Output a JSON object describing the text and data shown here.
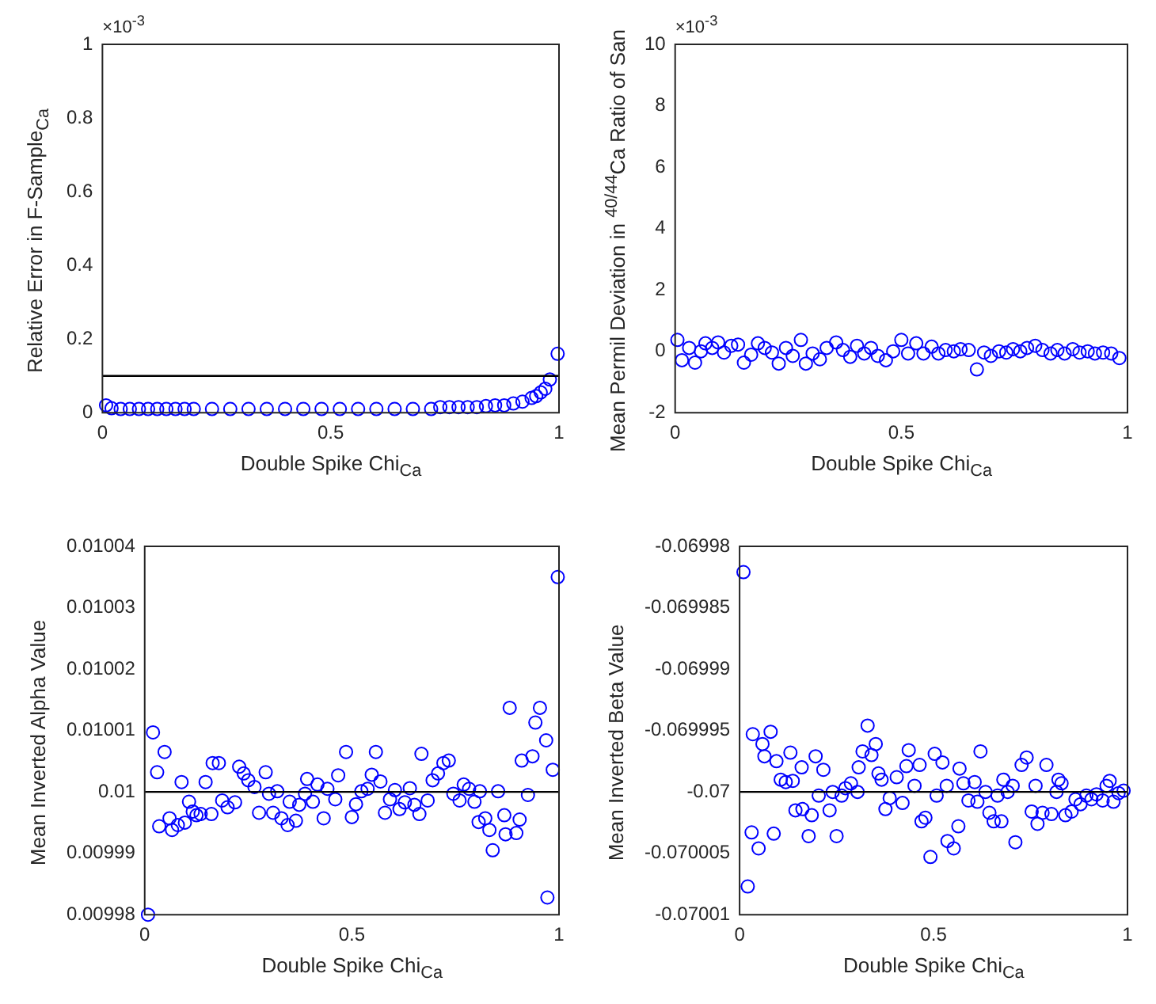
{
  "chart_data": [
    {
      "type": "scatter",
      "xlabel": "Double Spike Chi$_{Ca}$",
      "ylabel": "Relative Error in F-Sample$_{Ca}$",
      "marker": "circle",
      "annotations": [
        "×10$^{-3}$"
      ],
      "xlim": [
        0,
        1
      ],
      "xticks": [
        0,
        0.5,
        1
      ],
      "ylim": [
        0,
        1
      ],
      "yticks": [
        0,
        0.2,
        0.4,
        0.6,
        0.8,
        1
      ],
      "ref_lines": [
        {
          "axis": "y",
          "value": 0.1,
          "color": "#000000"
        }
      ],
      "series": [
        {
          "color": "#0000ff",
          "x": [
            0.008,
            0.02,
            0.04,
            0.06,
            0.08,
            0.1,
            0.12,
            0.14,
            0.16,
            0.18,
            0.2,
            0.24,
            0.28,
            0.32,
            0.36,
            0.4,
            0.44,
            0.48,
            0.52,
            0.56,
            0.6,
            0.64,
            0.68,
            0.72,
            0.74,
            0.76,
            0.78,
            0.8,
            0.82,
            0.84,
            0.86,
            0.88,
            0.9,
            0.92,
            0.94,
            0.95,
            0.96,
            0.97,
            0.98,
            0.997
          ],
          "values": [
            0.02,
            0.012,
            0.01,
            0.01,
            0.01,
            0.01,
            0.01,
            0.01,
            0.01,
            0.01,
            0.01,
            0.01,
            0.01,
            0.01,
            0.01,
            0.01,
            0.01,
            0.01,
            0.01,
            0.01,
            0.01,
            0.01,
            0.01,
            0.01,
            0.015,
            0.015,
            0.015,
            0.015,
            0.015,
            0.018,
            0.02,
            0.02,
            0.025,
            0.03,
            0.04,
            0.045,
            0.055,
            0.065,
            0.09,
            0.16
          ]
        }
      ]
    },
    {
      "type": "scatter",
      "xlabel": "Double Spike Chi$_{Ca}$",
      "ylabel": "Mean Permil Deviation in $^{40/44}$Ca Ratio of San",
      "marker": "circle",
      "annotations": [
        "×10$^{-3}$"
      ],
      "xlim": [
        0,
        1
      ],
      "xticks": [
        0,
        0.5,
        1
      ],
      "ylim": [
        -2,
        10
      ],
      "yticks": [
        -2,
        0,
        2,
        4,
        6,
        8,
        10
      ],
      "series": [
        {
          "color": "#0000ff",
          "x": [
            0.005,
            0.015,
            0.031,
            0.044,
            0.057,
            0.067,
            0.082,
            0.095,
            0.108,
            0.124,
            0.139,
            0.152,
            0.168,
            0.183,
            0.198,
            0.214,
            0.229,
            0.245,
            0.26,
            0.278,
            0.289,
            0.304,
            0.32,
            0.335,
            0.356,
            0.371,
            0.387,
            0.402,
            0.418,
            0.433,
            0.448,
            0.466,
            0.482,
            0.5,
            0.515,
            0.533,
            0.549,
            0.567,
            0.582,
            0.598,
            0.616,
            0.631,
            0.649,
            0.667,
            0.683,
            0.698,
            0.716,
            0.732,
            0.747,
            0.763,
            0.778,
            0.796,
            0.812,
            0.83,
            0.845,
            0.861,
            0.879,
            0.894,
            0.912,
            0.928,
            0.946,
            0.964,
            0.982
          ],
          "values": [
            0.37,
            -0.29,
            0.11,
            -0.37,
            0,
            0.26,
            0.11,
            0.29,
            -0.04,
            0.18,
            0.22,
            -0.37,
            -0.11,
            0.26,
            0.11,
            -0.04,
            -0.4,
            0.11,
            -0.15,
            0.37,
            -0.4,
            -0.07,
            -0.26,
            0.11,
            0.29,
            0.04,
            -0.18,
            0.18,
            -0.07,
            0.11,
            -0.15,
            -0.29,
            0,
            0.37,
            -0.07,
            0.26,
            -0.07,
            0.15,
            -0.07,
            0.04,
            0,
            0.07,
            0.04,
            -0.59,
            -0.04,
            -0.15,
            0,
            -0.04,
            0.07,
            0,
            0.11,
            0.18,
            0.04,
            -0.07,
            0.04,
            -0.07,
            0.07,
            -0.04,
            0,
            -0.07,
            -0.04,
            -0.07,
            -0.22
          ]
        }
      ]
    },
    {
      "type": "scatter",
      "xlabel": "Double Spike Chi$_{Ca}$",
      "ylabel": "Mean Inverted Alpha Value",
      "marker": "circle",
      "xlim": [
        0,
        1
      ],
      "xticks": [
        0,
        0.5,
        1
      ],
      "ylim": [
        0.00998,
        0.01004
      ],
      "yticks": [
        0.00998,
        0.00999,
        0.01,
        0.01001,
        0.01002,
        0.01003,
        0.01004
      ],
      "ref_lines": [
        {
          "axis": "y",
          "value": 0.01,
          "color": "#000000"
        }
      ],
      "series": [
        {
          "color": "#0000ff",
          "x": [
            0.008,
            0.02,
            0.03,
            0.035,
            0.048,
            0.06,
            0.066,
            0.08,
            0.089,
            0.097,
            0.107,
            0.116,
            0.125,
            0.135,
            0.147,
            0.161,
            0.164,
            0.179,
            0.187,
            0.2,
            0.218,
            0.228,
            0.239,
            0.25,
            0.265,
            0.276,
            0.292,
            0.3,
            0.31,
            0.32,
            0.33,
            0.345,
            0.35,
            0.365,
            0.373,
            0.387,
            0.392,
            0.406,
            0.417,
            0.432,
            0.441,
            0.46,
            0.467,
            0.486,
            0.5,
            0.51,
            0.523,
            0.538,
            0.548,
            0.558,
            0.569,
            0.58,
            0.592,
            0.604,
            0.615,
            0.628,
            0.64,
            0.651,
            0.663,
            0.668,
            0.683,
            0.695,
            0.708,
            0.721,
            0.734,
            0.745,
            0.76,
            0.77,
            0.783,
            0.796,
            0.806,
            0.809,
            0.822,
            0.832,
            0.84,
            0.853,
            0.868,
            0.871,
            0.881,
            0.897,
            0.905,
            0.91,
            0.925,
            0.936,
            0.943,
            0.954,
            0.969,
            0.972,
            0.985,
            0.997
          ],
          "values": [
            0.00998,
            0.0100097,
            0.0100032,
            0.0099944,
            0.0100065,
            0.0099957,
            0.0099938,
            0.0099946,
            0.0100016,
            0.009995,
            0.0099984,
            0.0099968,
            0.0099962,
            0.0099964,
            0.0100016,
            0.0099964,
            0.0100047,
            0.0100047,
            0.0099986,
            0.0099975,
            0.0099983,
            0.0100041,
            0.010003,
            0.0100019,
            0.0100008,
            0.0099966,
            0.0100032,
            0.0099997,
            0.0099966,
            0.0100001,
            0.0099957,
            0.0099946,
            0.0099984,
            0.0099953,
            0.0099979,
            0.0099997,
            0.0100021,
            0.0099984,
            0.0100012,
            0.0099957,
            0.0100005,
            0.0099988,
            0.0100027,
            0.0100065,
            0.0099959,
            0.009998,
            0.0100001,
            0.0100005,
            0.0100028,
            0.0100065,
            0.0100017,
            0.0099966,
            0.0099988,
            0.0100003,
            0.0099972,
            0.0099983,
            0.0100006,
            0.0099979,
            0.0099964,
            0.0100062,
            0.0099986,
            0.0100019,
            0.010003,
            0.0100047,
            0.0100051,
            0.0099997,
            0.0099986,
            0.0100012,
            0.0100005,
            0.0099984,
            0.0099951,
            0.0100001,
            0.0099957,
            0.0099938,
            0.0099905,
            0.0100001,
            0.0099962,
            0.0099931,
            0.0100137,
            0.0099933,
            0.0099955,
            0.0100051,
            0.0099995,
            0.0100058,
            0.0100113,
            0.0100137,
            0.0100084,
            0.0099828,
            0.0100036,
            0.010035
          ]
        }
      ]
    },
    {
      "type": "scatter",
      "xlabel": "Double Spike Chi$_{Ca}$",
      "ylabel": "Mean Inverted Beta Value",
      "marker": "circle",
      "xlim": [
        0,
        1
      ],
      "xticks": [
        0,
        0.5,
        1
      ],
      "ylim": [
        -0.07001,
        -0.06998
      ],
      "yticks": [
        -0.07001,
        -0.070005,
        -0.07,
        -0.069995,
        -0.06999,
        -0.069985,
        -0.06998
      ],
      "ref_lines": [
        {
          "axis": "y",
          "value": -0.07,
          "color": "#000000"
        }
      ],
      "series": [
        {
          "color": "#0000ff",
          "x": [
            0.01,
            0.021,
            0.034,
            0.031,
            0.049,
            0.059,
            0.064,
            0.08,
            0.088,
            0.095,
            0.106,
            0.119,
            0.131,
            0.137,
            0.144,
            0.16,
            0.162,
            0.178,
            0.186,
            0.196,
            0.204,
            0.216,
            0.232,
            0.24,
            0.25,
            0.263,
            0.273,
            0.287,
            0.304,
            0.307,
            0.317,
            0.33,
            0.34,
            0.351,
            0.358,
            0.366,
            0.376,
            0.387,
            0.405,
            0.42,
            0.43,
            0.436,
            0.451,
            0.464,
            0.469,
            0.479,
            0.492,
            0.503,
            0.508,
            0.523,
            0.534,
            0.536,
            0.552,
            0.564,
            0.567,
            0.577,
            0.59,
            0.606,
            0.613,
            0.621,
            0.634,
            0.644,
            0.655,
            0.665,
            0.675,
            0.68,
            0.691,
            0.704,
            0.711,
            0.727,
            0.74,
            0.753,
            0.763,
            0.768,
            0.781,
            0.791,
            0.804,
            0.817,
            0.822,
            0.83,
            0.84,
            0.856,
            0.866,
            0.879,
            0.894,
            0.907,
            0.92,
            0.936,
            0.946,
            0.954,
            0.964,
            0.977,
            0.99
          ],
          "values": [
            -0.0699821,
            -0.0700077,
            -0.0699953,
            -0.0700033,
            -0.0700046,
            -0.0699961,
            -0.0699971,
            -0.0699951,
            -0.0700034,
            -0.0699975,
            -0.069999,
            -0.0699992,
            -0.0699968,
            -0.0699991,
            -0.0700015,
            -0.069998,
            -0.0700014,
            -0.0700036,
            -0.0700019,
            -0.0699971,
            -0.0700003,
            -0.0699982,
            -0.0700015,
            -0.07,
            -0.0700036,
            -0.0700003,
            -0.0699997,
            -0.0699993,
            -0.07,
            -0.069998,
            -0.0699967,
            -0.0699946,
            -0.069997,
            -0.0699961,
            -0.0699985,
            -0.069999,
            -0.0700014,
            -0.0700005,
            -0.0699988,
            -0.0700009,
            -0.0699979,
            -0.0699966,
            -0.0699995,
            -0.0699978,
            -0.0700024,
            -0.0700021,
            -0.0700053,
            -0.0699969,
            -0.0700003,
            -0.0699976,
            -0.0699995,
            -0.070004,
            -0.0700046,
            -0.0700028,
            -0.0699981,
            -0.0699993,
            -0.0700007,
            -0.0699992,
            -0.0700008,
            -0.0699967,
            -0.07,
            -0.0700017,
            -0.0700024,
            -0.0700003,
            -0.0700024,
            -0.069999,
            -0.07,
            -0.0699995,
            -0.0700041,
            -0.0699978,
            -0.0699972,
            -0.0700016,
            -0.0699995,
            -0.0700026,
            -0.0700017,
            -0.0699978,
            -0.0700018,
            -0.07,
            -0.069999,
            -0.0699993,
            -0.0700019,
            -0.0700016,
            -0.0700006,
            -0.070001,
            -0.0700003,
            -0.0700006,
            -0.0700002,
            -0.0700007,
            -0.0699995,
            -0.0699991,
            -0.0700008,
            -0.0700001,
            -0.0699999
          ]
        }
      ]
    }
  ]
}
